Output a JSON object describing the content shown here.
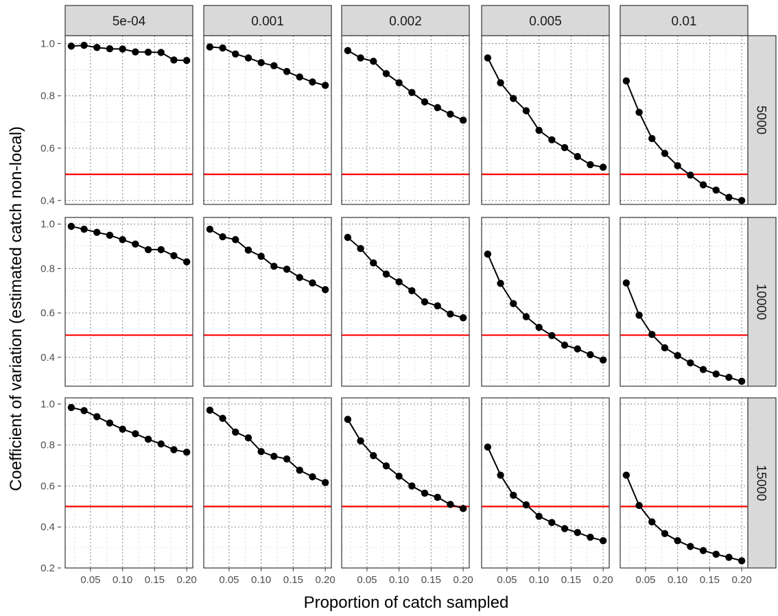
{
  "chart_data": {
    "type": "line",
    "layout": "facet-grid",
    "xlabel": "Proportion of catch sampled",
    "ylabel": "Coefficient of variation (estimated catch non-local)",
    "col_facets": [
      "5e-04",
      "0.001",
      "0.002",
      "0.005",
      "0.01"
    ],
    "row_facets": [
      "5000",
      "10000",
      "15000"
    ],
    "x": [
      0.02,
      0.04,
      0.06,
      0.08,
      0.1,
      0.12,
      0.14,
      0.16,
      0.18,
      0.2
    ],
    "x_ticks": [
      0.05,
      0.1,
      0.15,
      0.2
    ],
    "x_tick_labels": [
      "0.05",
      "0.10",
      "0.15",
      "0.20"
    ],
    "xlim": [
      0.0105,
      0.2095
    ],
    "row_ylim": [
      [
        0.385,
        1.03
      ],
      [
        0.27,
        1.03
      ],
      [
        0.2,
        1.03
      ]
    ],
    "row_y_ticks": [
      [
        0.4,
        0.6,
        0.8,
        1.0
      ],
      [
        0.4,
        0.6,
        0.8,
        1.0
      ],
      [
        0.2,
        0.4,
        0.6,
        0.8,
        1.0
      ]
    ],
    "row_y_tick_labels": [
      [
        "0.4",
        "0.6",
        "0.8",
        "1.0"
      ],
      [
        "0.4",
        "0.6",
        "0.8",
        "1.0"
      ],
      [
        "0.2",
        "0.4",
        "0.6",
        "0.8",
        "1.0"
      ]
    ],
    "hline": {
      "y": 0.5,
      "color": "#ff0000"
    },
    "line_color": "#000000",
    "grid": "dotted",
    "strip_fill": "#d9d9d9",
    "series": [
      [
        [
          0.99,
          0.993,
          0.985,
          0.98,
          0.979,
          0.968,
          0.967,
          0.966,
          0.937,
          0.935
        ],
        [
          0.987,
          0.983,
          0.96,
          0.945,
          0.927,
          0.915,
          0.893,
          0.872,
          0.853,
          0.84
        ],
        [
          0.973,
          0.945,
          0.932,
          0.885,
          0.85,
          0.813,
          0.777,
          0.755,
          0.73,
          0.707
        ],
        [
          0.945,
          0.85,
          0.79,
          0.743,
          0.668,
          0.632,
          0.602,
          0.568,
          0.537,
          0.527
        ],
        [
          0.857,
          0.737,
          0.637,
          0.58,
          0.533,
          0.497,
          0.46,
          0.44,
          0.412,
          0.4
        ]
      ],
      [
        [
          0.99,
          0.977,
          0.963,
          0.95,
          0.93,
          0.91,
          0.885,
          0.885,
          0.858,
          0.83
        ],
        [
          0.977,
          0.943,
          0.93,
          0.883,
          0.855,
          0.81,
          0.797,
          0.76,
          0.735,
          0.705
        ],
        [
          0.94,
          0.89,
          0.825,
          0.775,
          0.74,
          0.7,
          0.65,
          0.632,
          0.595,
          0.578
        ],
        [
          0.865,
          0.733,
          0.642,
          0.583,
          0.535,
          0.498,
          0.455,
          0.438,
          0.412,
          0.388
        ],
        [
          0.735,
          0.59,
          0.503,
          0.443,
          0.408,
          0.375,
          0.345,
          0.325,
          0.31,
          0.292
        ]
      ],
      [
        [
          0.983,
          0.968,
          0.938,
          0.907,
          0.877,
          0.855,
          0.828,
          0.805,
          0.777,
          0.765
        ],
        [
          0.97,
          0.93,
          0.863,
          0.835,
          0.768,
          0.745,
          0.732,
          0.677,
          0.645,
          0.617
        ],
        [
          0.925,
          0.82,
          0.748,
          0.698,
          0.648,
          0.6,
          0.565,
          0.545,
          0.51,
          0.49
        ],
        [
          0.79,
          0.653,
          0.555,
          0.508,
          0.452,
          0.422,
          0.392,
          0.373,
          0.35,
          0.333
        ],
        [
          0.653,
          0.505,
          0.425,
          0.368,
          0.333,
          0.305,
          0.285,
          0.267,
          0.252,
          0.235
        ]
      ]
    ]
  }
}
